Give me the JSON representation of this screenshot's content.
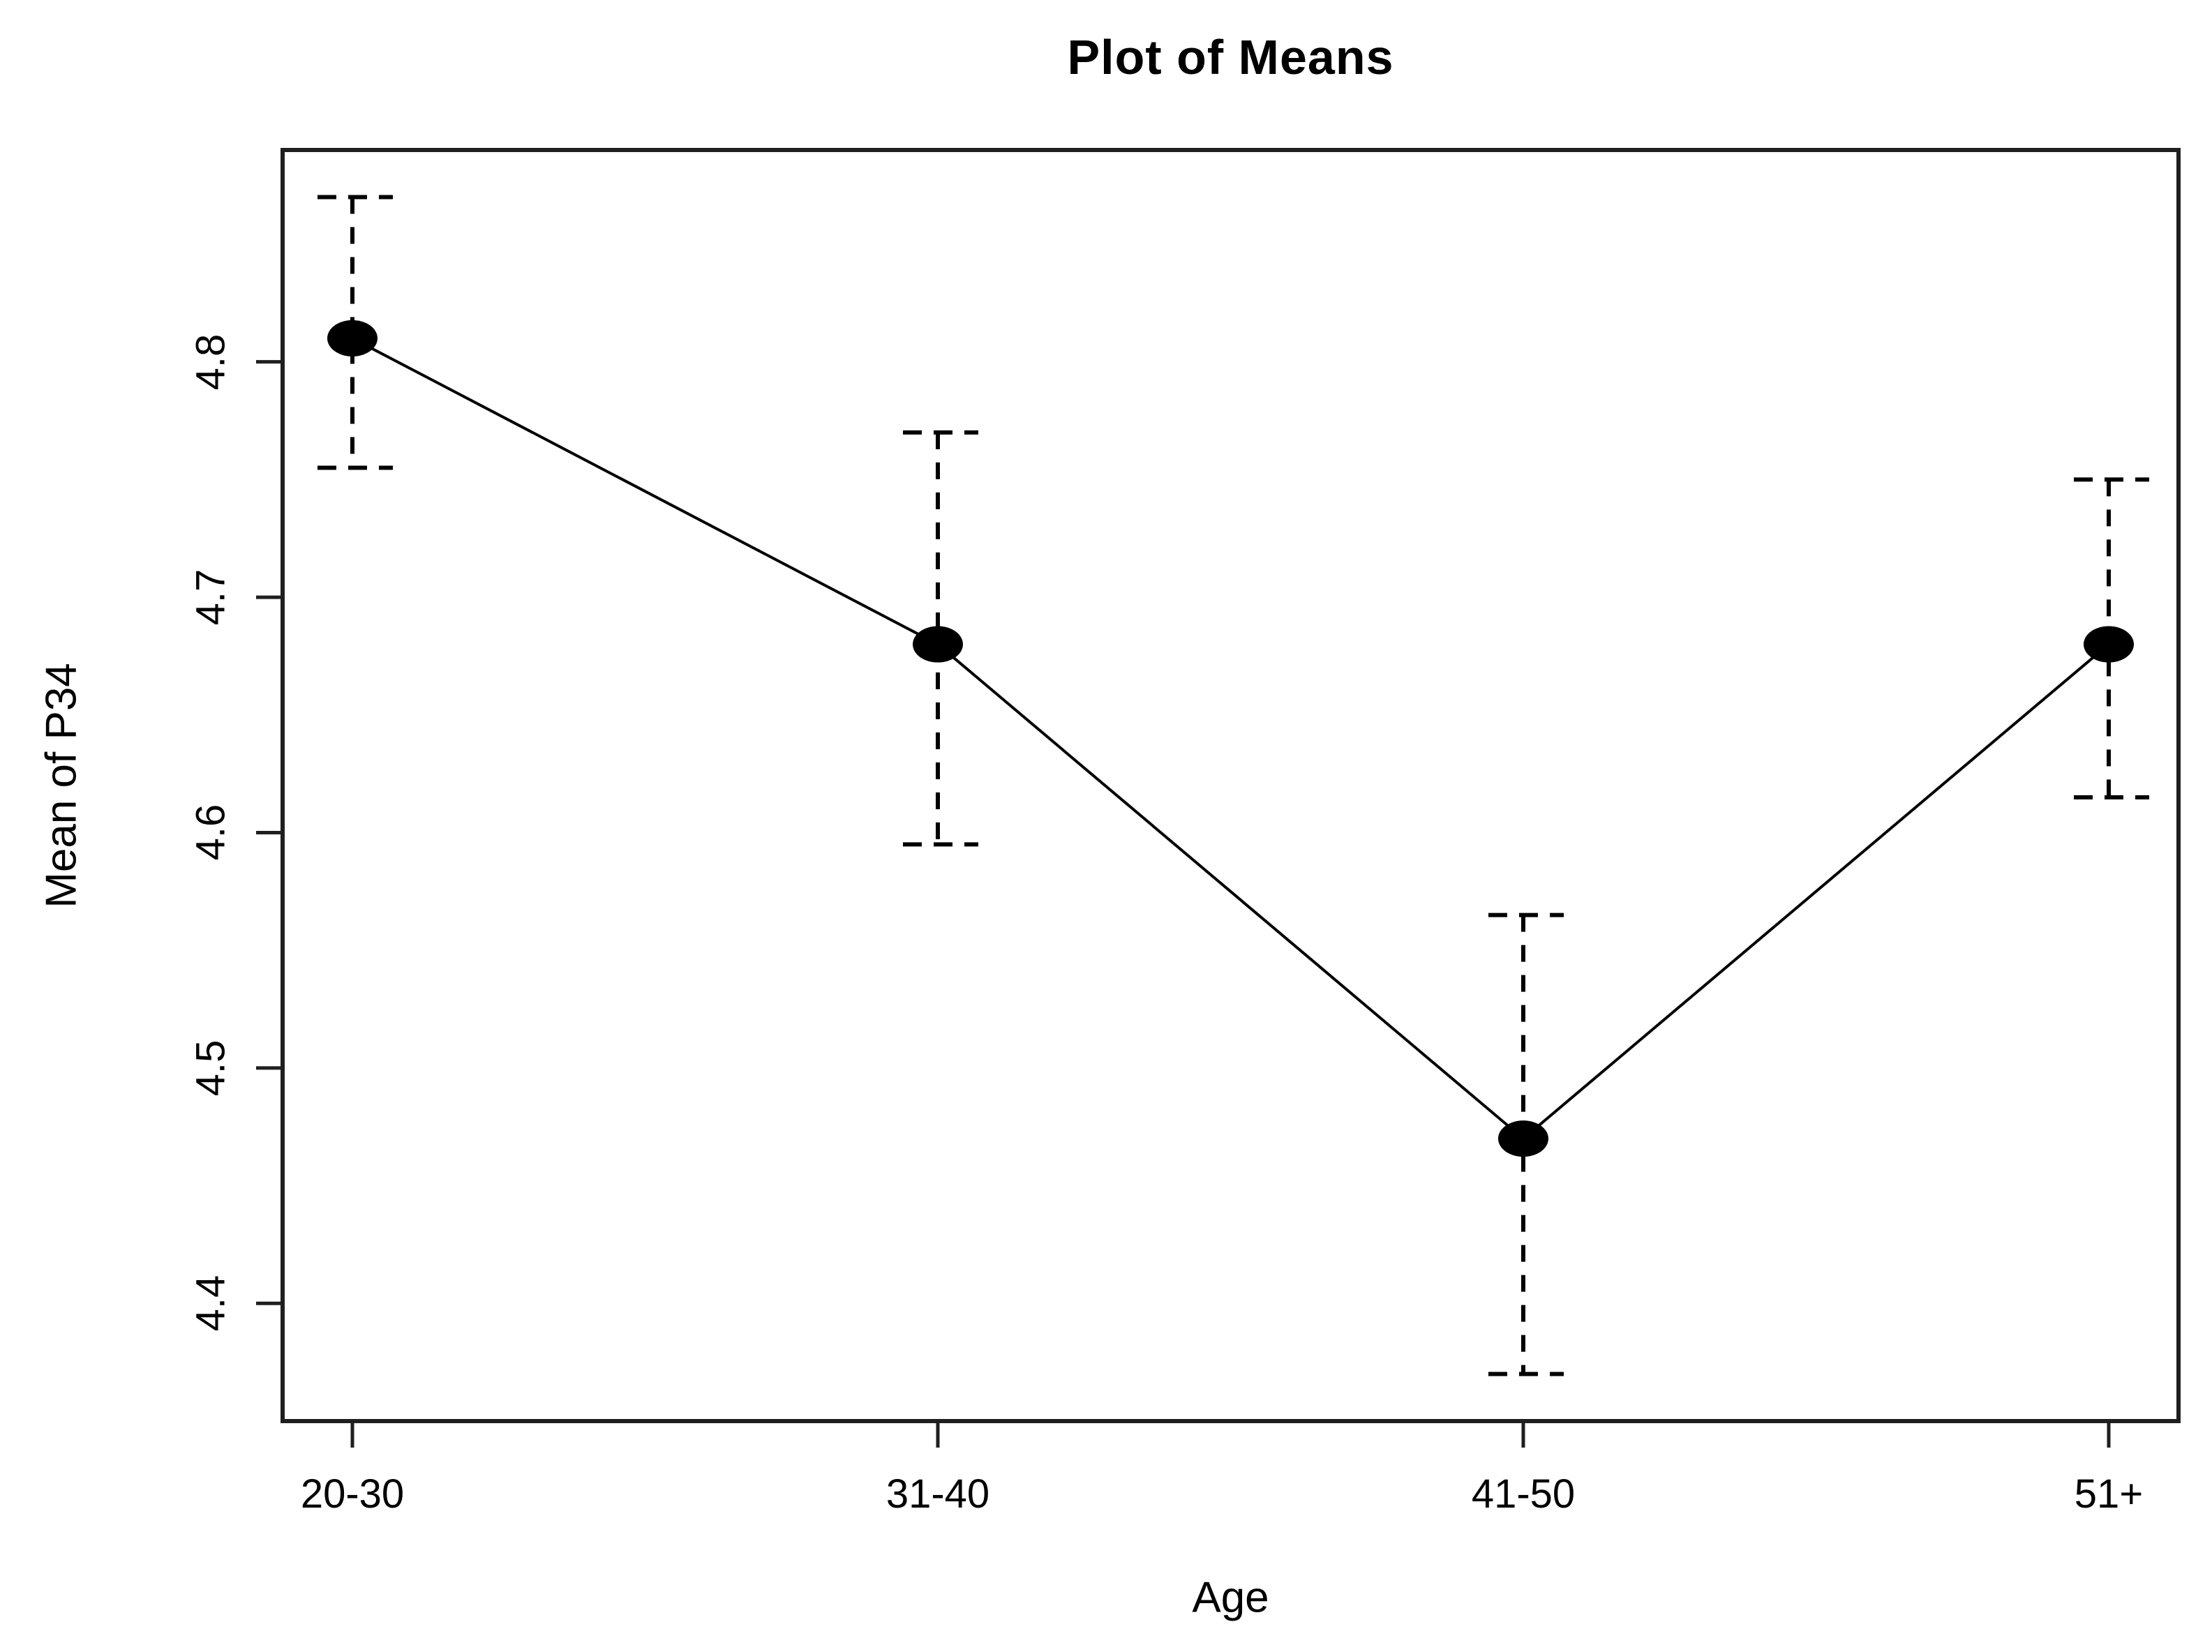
{
  "chart_data": {
    "type": "line",
    "title": "Plot of Means",
    "xlabel": "Age",
    "ylabel": "Mean of P34",
    "categories": [
      "20-30",
      "31-40",
      "41-50",
      "51+"
    ],
    "series": [
      {
        "name": "Mean of P34",
        "values": [
          4.81,
          4.68,
          4.47,
          4.68
        ]
      }
    ],
    "error_bars": {
      "ci_lower": [
        4.755,
        4.595,
        4.37,
        4.615
      ],
      "ci_upper": [
        4.87,
        4.77,
        4.565,
        4.75
      ],
      "line_style": "dashed",
      "cap_style": "dashed"
    },
    "yticks": [
      4.8,
      4.7,
      4.6,
      4.5,
      4.4
    ],
    "ytick_labels": [
      "4.8",
      "4.7",
      "4.6",
      "4.5",
      "4.4"
    ],
    "ylim": [
      4.35,
      4.89
    ],
    "grid": false,
    "legend": "none",
    "marker": "filled-ellipse",
    "colors": {
      "foreground": "#000000",
      "axis": "#1f1f1f",
      "background": "#ffffff"
    }
  }
}
